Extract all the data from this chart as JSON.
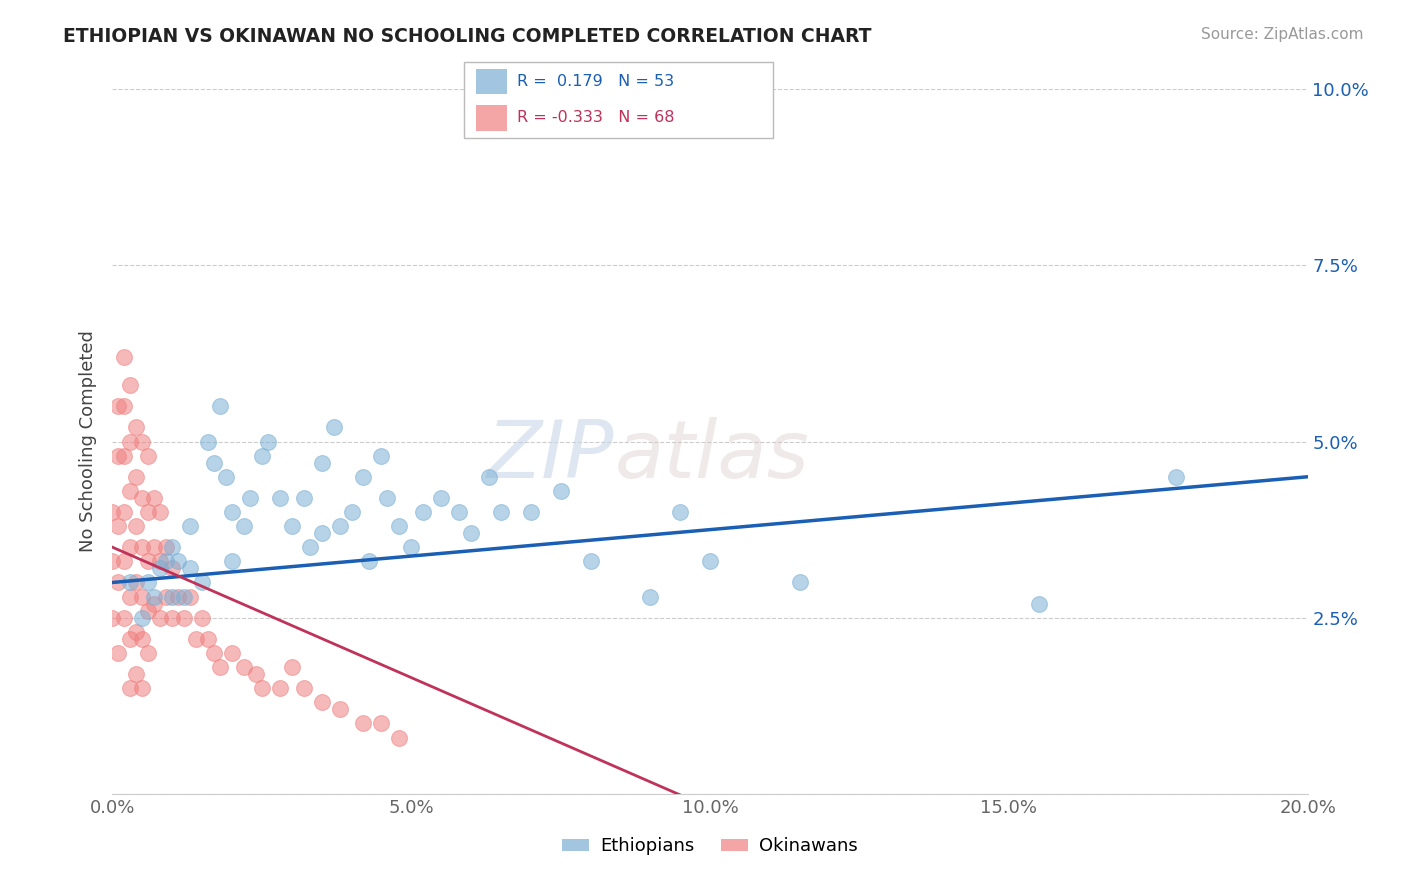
{
  "title": "ETHIOPIAN VS OKINAWAN NO SCHOOLING COMPLETED CORRELATION CHART",
  "source": "Source: ZipAtlas.com",
  "ylabel": "No Schooling Completed",
  "xlabel": "",
  "watermark_zip": "ZIP",
  "watermark_atlas": "atlas",
  "ethiopian_color": "#7bafd4",
  "okinawan_color": "#f08080",
  "trend_ethiopian_color": "#1a5fb4",
  "trend_okinawan_color": "#c0325a",
  "xlim": [
    0.0,
    0.2
  ],
  "ylim": [
    0.0,
    0.1
  ],
  "xticks": [
    0.0,
    0.05,
    0.1,
    0.15,
    0.2
  ],
  "xtick_labels": [
    "0.0%",
    "5.0%",
    "10.0%",
    "15.0%",
    "20.0%"
  ],
  "yticks": [
    0.0,
    0.025,
    0.05,
    0.075,
    0.1
  ],
  "ytick_labels": [
    "",
    "2.5%",
    "5.0%",
    "7.5%",
    "10.0%"
  ],
  "background_color": "#ffffff",
  "grid_color": "#cccccc",
  "r_eth": 0.179,
  "n_eth": 53,
  "r_oki": -0.333,
  "n_oki": 68,
  "ethiopian_x": [
    0.003,
    0.005,
    0.006,
    0.007,
    0.008,
    0.009,
    0.01,
    0.01,
    0.011,
    0.012,
    0.013,
    0.013,
    0.015,
    0.016,
    0.017,
    0.018,
    0.019,
    0.02,
    0.02,
    0.022,
    0.023,
    0.025,
    0.026,
    0.028,
    0.03,
    0.032,
    0.033,
    0.035,
    0.035,
    0.037,
    0.038,
    0.04,
    0.042,
    0.043,
    0.045,
    0.046,
    0.048,
    0.05,
    0.052,
    0.055,
    0.058,
    0.06,
    0.063,
    0.065,
    0.07,
    0.075,
    0.08,
    0.09,
    0.095,
    0.1,
    0.115,
    0.155,
    0.178
  ],
  "ethiopian_y": [
    0.03,
    0.025,
    0.03,
    0.028,
    0.032,
    0.033,
    0.028,
    0.035,
    0.033,
    0.028,
    0.032,
    0.038,
    0.03,
    0.05,
    0.047,
    0.055,
    0.045,
    0.04,
    0.033,
    0.038,
    0.042,
    0.048,
    0.05,
    0.042,
    0.038,
    0.042,
    0.035,
    0.047,
    0.037,
    0.052,
    0.038,
    0.04,
    0.045,
    0.033,
    0.048,
    0.042,
    0.038,
    0.035,
    0.04,
    0.042,
    0.04,
    0.037,
    0.045,
    0.04,
    0.04,
    0.043,
    0.033,
    0.028,
    0.04,
    0.033,
    0.03,
    0.027,
    0.045
  ],
  "okinawan_x": [
    0.0,
    0.0,
    0.0,
    0.001,
    0.001,
    0.001,
    0.001,
    0.001,
    0.002,
    0.002,
    0.002,
    0.002,
    0.002,
    0.002,
    0.003,
    0.003,
    0.003,
    0.003,
    0.003,
    0.003,
    0.003,
    0.004,
    0.004,
    0.004,
    0.004,
    0.004,
    0.004,
    0.005,
    0.005,
    0.005,
    0.005,
    0.005,
    0.005,
    0.006,
    0.006,
    0.006,
    0.006,
    0.006,
    0.007,
    0.007,
    0.007,
    0.008,
    0.008,
    0.008,
    0.009,
    0.009,
    0.01,
    0.01,
    0.011,
    0.012,
    0.013,
    0.014,
    0.015,
    0.016,
    0.017,
    0.018,
    0.02,
    0.022,
    0.024,
    0.025,
    0.028,
    0.03,
    0.032,
    0.035,
    0.038,
    0.042,
    0.045,
    0.048
  ],
  "okinawan_y": [
    0.04,
    0.033,
    0.025,
    0.055,
    0.048,
    0.038,
    0.03,
    0.02,
    0.062,
    0.055,
    0.048,
    0.04,
    0.033,
    0.025,
    0.058,
    0.05,
    0.043,
    0.035,
    0.028,
    0.022,
    0.015,
    0.052,
    0.045,
    0.038,
    0.03,
    0.023,
    0.017,
    0.05,
    0.042,
    0.035,
    0.028,
    0.022,
    0.015,
    0.048,
    0.04,
    0.033,
    0.026,
    0.02,
    0.042,
    0.035,
    0.027,
    0.04,
    0.033,
    0.025,
    0.035,
    0.028,
    0.032,
    0.025,
    0.028,
    0.025,
    0.028,
    0.022,
    0.025,
    0.022,
    0.02,
    0.018,
    0.02,
    0.018,
    0.017,
    0.015,
    0.015,
    0.018,
    0.015,
    0.013,
    0.012,
    0.01,
    0.01,
    0.008
  ]
}
